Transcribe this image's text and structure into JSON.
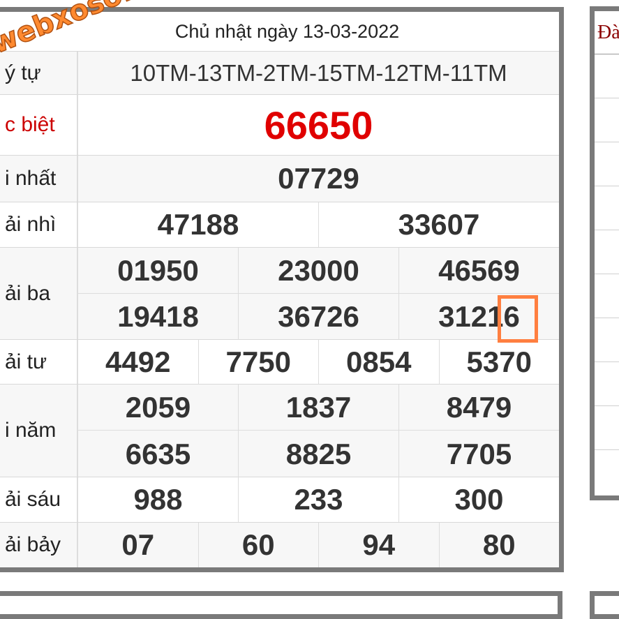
{
  "watermark": "webxoso.net",
  "header": {
    "date": "Chủ nhật ngày 13-03-2022"
  },
  "rows": {
    "ky_tu": {
      "label": "ý tự",
      "values": [
        "10TM-13TM-2TM-15TM-12TM-11TM"
      ]
    },
    "dac_biet": {
      "label": "c biệt",
      "values": [
        "66650"
      ]
    },
    "nhat": {
      "label": "i nhất",
      "values": [
        "07729"
      ]
    },
    "nhi": {
      "label": "ải nhì",
      "values": [
        "47188",
        "33607"
      ]
    },
    "ba": {
      "label": "ải ba",
      "values": [
        "01950",
        "23000",
        "46569",
        "19418",
        "36726",
        "31216"
      ]
    },
    "tu": {
      "label": "ải tư",
      "values": [
        "4492",
        "7750",
        "0854",
        "5370"
      ]
    },
    "nam": {
      "label": "i năm",
      "values": [
        "2059",
        "1837",
        "8479",
        "6635",
        "8825",
        "7705"
      ]
    },
    "sau": {
      "label": "ải sáu",
      "values": [
        "988",
        "233",
        "300"
      ]
    },
    "bay": {
      "label": "ải bảy",
      "values": [
        "07",
        "60",
        "94",
        "80"
      ]
    }
  },
  "side": {
    "header": "Đà"
  },
  "colors": {
    "special": "#e00000",
    "label_red": "#cc0000",
    "side_header": "#8b0000",
    "highlight": "#ff7f40",
    "border": "#7a7a7a"
  }
}
